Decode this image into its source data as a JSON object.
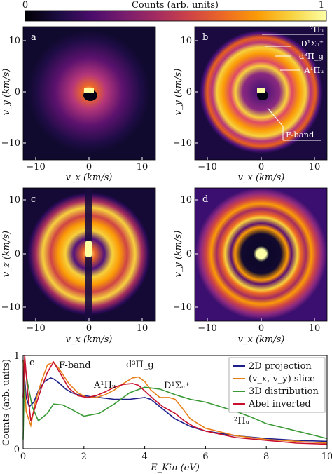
{
  "colorbar": {
    "label": "Counts (arb. units)",
    "tick_min": "0",
    "tick_max": "1",
    "colormap": [
      "#000004",
      "#1b0c41",
      "#4a0c6b",
      "#781c6d",
      "#a52c60",
      "#cf4446",
      "#ed6925",
      "#fb9b06",
      "#f7d13d",
      "#fcffa4"
    ]
  },
  "panels": [
    {
      "letter": "a",
      "type": "2D projection",
      "xlabel": "v_x (km/s)",
      "ylabel": "v_y (km/s)"
    },
    {
      "letter": "b",
      "type": "(v_x, v_y) slice",
      "xlabel": "v_x (km/s)",
      "ylabel": "v_y (km/s)",
      "annotations": [
        "²Πᵤ",
        "D¹Σᵤ⁺",
        "d³Π_g",
        "A¹Πᵤ",
        "F-band"
      ]
    },
    {
      "letter": "c",
      "type": "3D distribution side view",
      "xlabel": "v_x (km/s)",
      "ylabel": "v_z (km/s)"
    },
    {
      "letter": "d",
      "type": "Abel inverted",
      "xlabel": "v_x (km/s)",
      "ylabel": "v_y (km/s)"
    }
  ],
  "image_ticks": {
    "x": [
      "−10",
      "0",
      "10"
    ],
    "y": [
      "10",
      "0",
      "−10"
    ]
  },
  "chart_data": {
    "type": "line",
    "panel_letter": "e",
    "xlabel": "E_Kin (eV)",
    "ylabel": "Counts (arb. units)",
    "xlim": [
      0,
      10
    ],
    "ylim": [
      0,
      1
    ],
    "x_ticks": [
      "0",
      "2",
      "4",
      "6",
      "8",
      "10"
    ],
    "y_ticks": [
      "0",
      "1"
    ],
    "legend_position": "top-right",
    "series": [
      {
        "name": "2D projection",
        "color": "#1f1f8c",
        "x": [
          0.0,
          0.1,
          0.2,
          0.35,
          0.5,
          0.7,
          0.9,
          1.0,
          1.2,
          1.4,
          1.6,
          1.8,
          2.0,
          2.2,
          2.5,
          3.0,
          3.5,
          4.0,
          4.2,
          4.5,
          5.0,
          5.5,
          6.0,
          7.0,
          8.0,
          9.0,
          10.0
        ],
        "y": [
          0.95,
          0.55,
          0.45,
          0.5,
          0.62,
          0.72,
          0.76,
          0.75,
          0.7,
          0.64,
          0.6,
          0.58,
          0.57,
          0.56,
          0.55,
          0.53,
          0.53,
          0.55,
          0.53,
          0.45,
          0.32,
          0.24,
          0.19,
          0.14,
          0.11,
          0.09,
          0.08
        ]
      },
      {
        "name": "(v_x, v_y) slice",
        "color": "#e8801a",
        "x": [
          0.0,
          0.1,
          0.25,
          0.4,
          0.6,
          0.8,
          1.0,
          1.2,
          1.5,
          1.8,
          2.1,
          2.4,
          2.7,
          3.0,
          3.3,
          3.6,
          3.8,
          4.0,
          4.2,
          4.5,
          4.8,
          5.0,
          5.2,
          5.5,
          6.0,
          7.0,
          8.0,
          9.0,
          10.0
        ],
        "y": [
          0.95,
          0.4,
          0.25,
          0.5,
          0.72,
          0.9,
          0.93,
          0.85,
          0.7,
          0.6,
          0.55,
          0.55,
          0.58,
          0.63,
          0.7,
          0.76,
          0.77,
          0.72,
          0.63,
          0.55,
          0.55,
          0.53,
          0.45,
          0.32,
          0.22,
          0.14,
          0.1,
          0.08,
          0.06
        ]
      },
      {
        "name": "3D distribution",
        "color": "#3a9a36",
        "x": [
          0.0,
          0.05,
          0.15,
          0.3,
          0.5,
          0.8,
          1.0,
          1.3,
          1.6,
          2.0,
          2.5,
          3.0,
          3.5,
          4.0,
          4.5,
          5.0,
          5.5,
          6.0,
          6.5,
          7.0,
          7.5,
          8.0,
          8.5,
          9.0,
          9.5,
          10.0
        ],
        "y": [
          0.1,
          0.9,
          0.7,
          0.45,
          0.3,
          0.38,
          0.48,
          0.47,
          0.42,
          0.35,
          0.38,
          0.48,
          0.6,
          0.66,
          0.64,
          0.58,
          0.53,
          0.5,
          0.45,
          0.4,
          0.34,
          0.27,
          0.23,
          0.19,
          0.15,
          0.11
        ]
      },
      {
        "name": "Abel inverted",
        "color": "#c8102e",
        "x": [
          0.0,
          0.05,
          0.15,
          0.25,
          0.4,
          0.6,
          0.8,
          1.0,
          1.2,
          1.5,
          1.8,
          2.1,
          2.4,
          2.7,
          3.0,
          3.3,
          3.6,
          3.8,
          4.0,
          4.3,
          4.6,
          5.0,
          5.3,
          5.6,
          6.0,
          7.0,
          8.0,
          9.0,
          10.0
        ],
        "y": [
          0.55,
          1.0,
          0.6,
          0.3,
          0.45,
          0.65,
          0.82,
          0.93,
          0.82,
          0.65,
          0.57,
          0.55,
          0.57,
          0.61,
          0.66,
          0.69,
          0.7,
          0.68,
          0.62,
          0.53,
          0.45,
          0.38,
          0.3,
          0.24,
          0.19,
          0.12,
          0.09,
          0.06,
          0.05
        ]
      }
    ],
    "annotations": [
      "F-band",
      "A¹Πᵤ",
      "d³Π_g",
      "D¹Σᵤ⁺",
      "²Πᵤ"
    ]
  }
}
